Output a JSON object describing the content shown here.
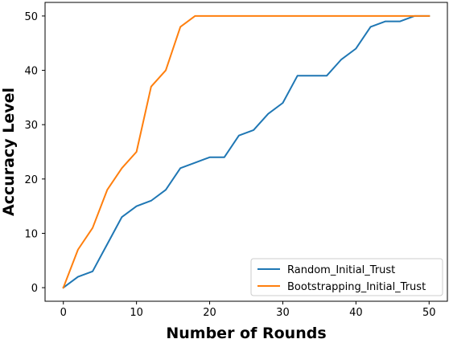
{
  "chart_data": {
    "type": "line",
    "title": "",
    "xlabel": "Number of Rounds",
    "ylabel": "Accuracy Level",
    "xlim": [
      -2.5,
      52.5
    ],
    "ylim": [
      -2.5,
      52.5
    ],
    "xticks": [
      0,
      10,
      20,
      30,
      40,
      50
    ],
    "yticks": [
      0,
      10,
      20,
      30,
      40,
      50
    ],
    "grid": false,
    "legend_position": "lower-right",
    "series": [
      {
        "name": "Random_Initial_Trust",
        "color": "#1f77b4",
        "x": [
          0,
          2,
          4,
          6,
          8,
          10,
          12,
          14,
          16,
          18,
          20,
          22,
          24,
          26,
          28,
          30,
          32,
          34,
          36,
          38,
          40,
          42,
          44,
          46,
          48,
          50
        ],
        "y": [
          0,
          2,
          3,
          8,
          13,
          15,
          16,
          18,
          22,
          23,
          24,
          24,
          28,
          29,
          32,
          34,
          39,
          39,
          39,
          42,
          44,
          48,
          49,
          49,
          50,
          50
        ]
      },
      {
        "name": "Bootstrapping_Initial_Trust",
        "color": "#ff7f0e",
        "x": [
          0,
          2,
          4,
          6,
          8,
          10,
          12,
          14,
          16,
          18,
          20,
          22,
          24,
          26,
          28,
          30,
          32,
          34,
          36,
          38,
          40,
          42,
          44,
          46,
          48,
          50
        ],
        "y": [
          0,
          7,
          11,
          18,
          22,
          25,
          37,
          40,
          48,
          50,
          50,
          50,
          50,
          50,
          50,
          50,
          50,
          50,
          50,
          50,
          50,
          50,
          50,
          50,
          50,
          50
        ]
      }
    ]
  }
}
